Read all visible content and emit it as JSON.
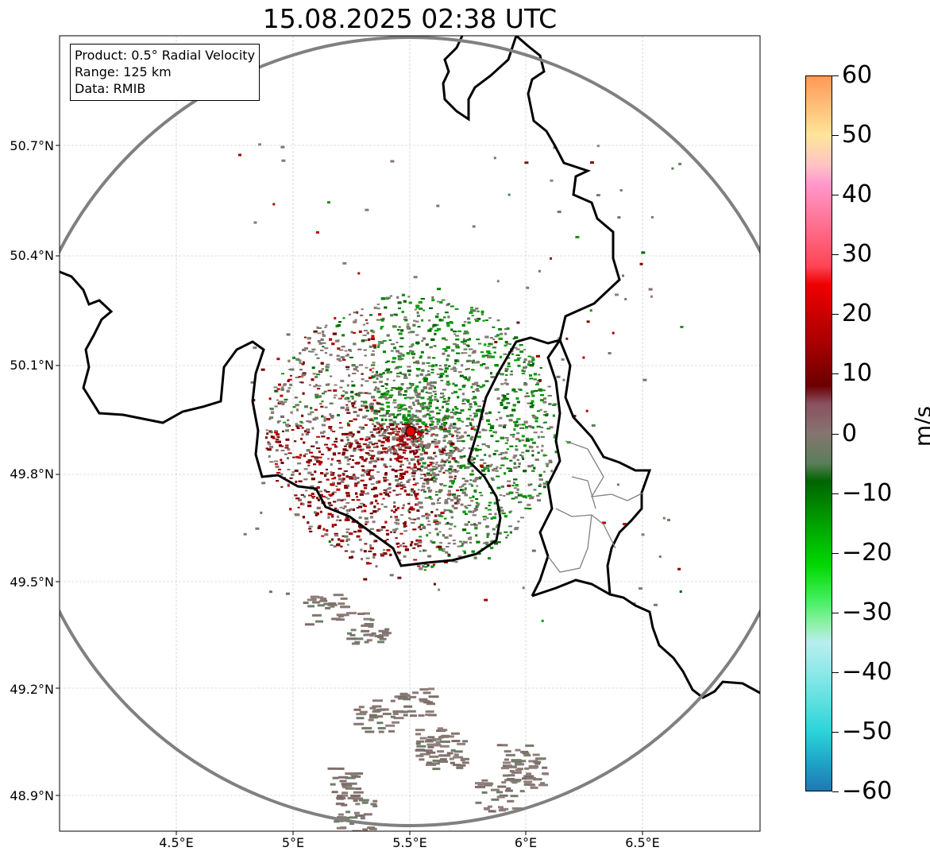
{
  "title": "15.08.2025 02:38 UTC",
  "info": {
    "product": "Product: 0.5° Radial Velocity",
    "range": "Range: 125 km",
    "data": "Data: RMIB"
  },
  "map": {
    "lon_range": [
      4.0,
      7.0
    ],
    "lat_range": [
      48.8,
      51.0
    ],
    "lat_ticks": [
      "50.7°N",
      "50.4°N",
      "50.1°N",
      "49.8°N",
      "49.5°N",
      "49.2°N",
      "48.9°N"
    ],
    "lon_ticks": [
      "4.5°E",
      "5°E",
      "5.5°E",
      "6°E",
      "6.5°E"
    ],
    "radar_site": {
      "lon": 5.5,
      "lat": 49.92
    }
  },
  "colorbar": {
    "unit": "m/s",
    "min": -60,
    "max": 60,
    "ticks": [
      "60",
      "50",
      "40",
      "30",
      "20",
      "10",
      "0",
      "−10",
      "−20",
      "−30",
      "−40",
      "−50",
      "−60"
    ],
    "stops": [
      {
        "v": -60,
        "c": "#1f77b4"
      },
      {
        "v": -55,
        "c": "#1fa5c8"
      },
      {
        "v": -50,
        "c": "#2ad4da"
      },
      {
        "v": -45,
        "c": "#5ce0e0"
      },
      {
        "v": -40,
        "c": "#8ee8e8"
      },
      {
        "v": -35,
        "c": "#b8eef0"
      },
      {
        "v": -32,
        "c": "#90f0a8"
      },
      {
        "v": -28,
        "c": "#44f060"
      },
      {
        "v": -22,
        "c": "#00d800"
      },
      {
        "v": -15,
        "c": "#00a000"
      },
      {
        "v": -8,
        "c": "#006400"
      },
      {
        "v": -5,
        "c": "#5a7f5a"
      },
      {
        "v": 0,
        "c": "#857570"
      },
      {
        "v": 5,
        "c": "#8a5060"
      },
      {
        "v": 8,
        "c": "#6b0000"
      },
      {
        "v": 15,
        "c": "#a80000"
      },
      {
        "v": 25,
        "c": "#ee0000"
      },
      {
        "v": 28,
        "c": "#ff4455"
      },
      {
        "v": 35,
        "c": "#ff7090"
      },
      {
        "v": 42,
        "c": "#ff99cc"
      },
      {
        "v": 45,
        "c": "#ffc4c4"
      },
      {
        "v": 50,
        "c": "#ffe59a"
      },
      {
        "v": 55,
        "c": "#ffbe78"
      },
      {
        "v": 60,
        "c": "#ff9955"
      }
    ]
  },
  "colors": {
    "border": "#000000",
    "range_ring": "#808080",
    "grid": "#c0c0c0",
    "site": "#e00000"
  }
}
